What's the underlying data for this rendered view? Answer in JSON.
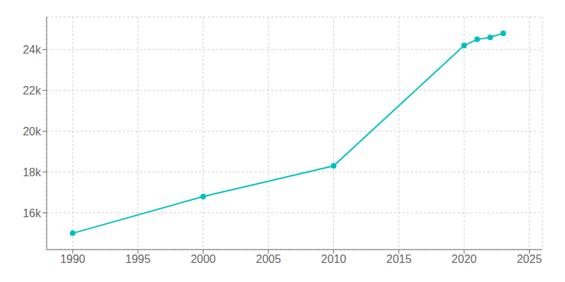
{
  "chart_data": {
    "type": "line",
    "x": [
      1990,
      2000,
      2010,
      2020,
      2021,
      2022,
      2023
    ],
    "values": [
      15000,
      16800,
      18300,
      24200,
      24500,
      24600,
      24800
    ],
    "color": "#00bfbf",
    "marker": "circle",
    "xlim": [
      1988,
      2026
    ],
    "ylim": [
      14200,
      25600
    ],
    "xticks": [
      1990,
      1995,
      2000,
      2005,
      2010,
      2015,
      2020,
      2025
    ],
    "yticks": [
      {
        "value": 16000,
        "label": "16k"
      },
      {
        "value": 18000,
        "label": "18k"
      },
      {
        "value": 20000,
        "label": "20k"
      },
      {
        "value": 22000,
        "label": "22k"
      },
      {
        "value": 24000,
        "label": "24k"
      }
    ],
    "grid": true
  }
}
